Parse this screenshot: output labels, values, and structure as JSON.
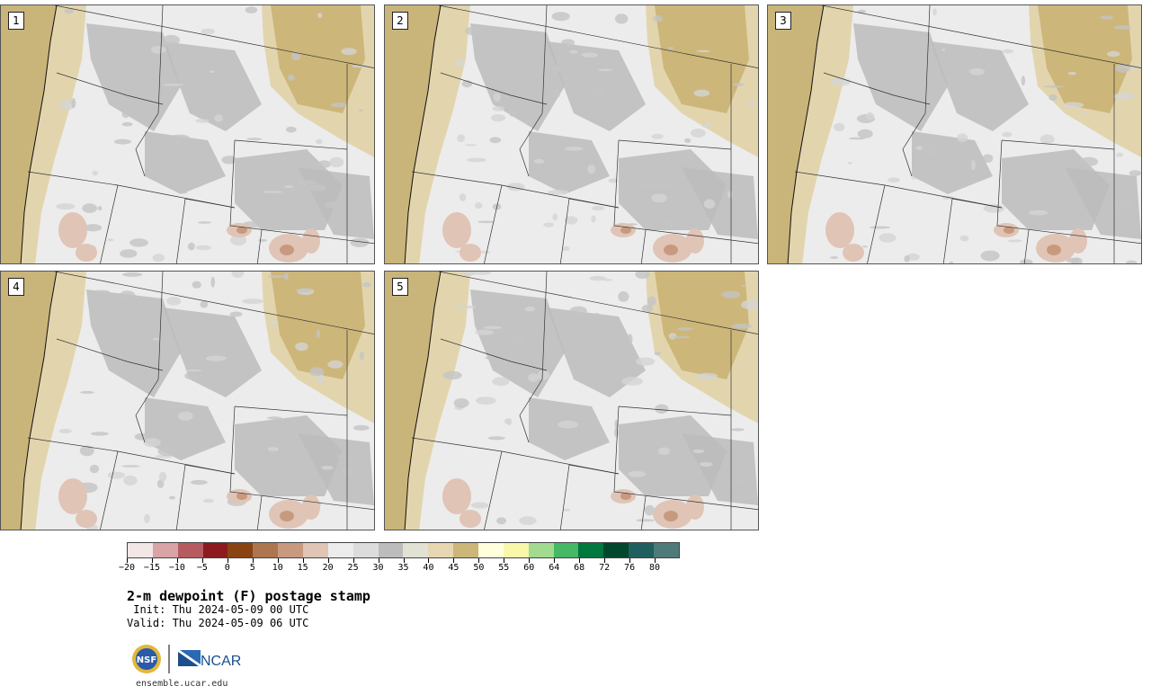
{
  "panels": [
    {
      "label": "1"
    },
    {
      "label": "2"
    },
    {
      "label": "3"
    },
    {
      "label": "4"
    },
    {
      "label": "5"
    }
  ],
  "colorbar": {
    "colors": [
      "#f3e6e6",
      "#d9a4a6",
      "#b65c60",
      "#8c1a1f",
      "#8a4312",
      "#ad7650",
      "#c79a80",
      "#e0c4b5",
      "#ececec",
      "#dcdcdc",
      "#bcbcbc",
      "#e1e1d4",
      "#e6d7b2",
      "#cdb679",
      "#ffffdc",
      "#f9f7aa",
      "#a2da90",
      "#46b866",
      "#00783e",
      "#00472e",
      "#1f5f5f",
      "#4e7a7a"
    ],
    "tick_labels": [
      "−20",
      "−15",
      "−10",
      "−5",
      "0",
      "5",
      "10",
      "15",
      "20",
      "25",
      "30",
      "35",
      "40",
      "45",
      "50",
      "55",
      "60",
      "64",
      "68",
      "72",
      "76",
      "80"
    ]
  },
  "title": "2-m dewpoint (F) postage stamp",
  "init": " Init: Thu 2024-05-09 00 UTC",
  "valid": "Valid: Thu 2024-05-09 06 UTC",
  "logo": {
    "nsf": "NSF",
    "ncar": "NCAR"
  },
  "site": "ensemble.ucar.edu"
}
